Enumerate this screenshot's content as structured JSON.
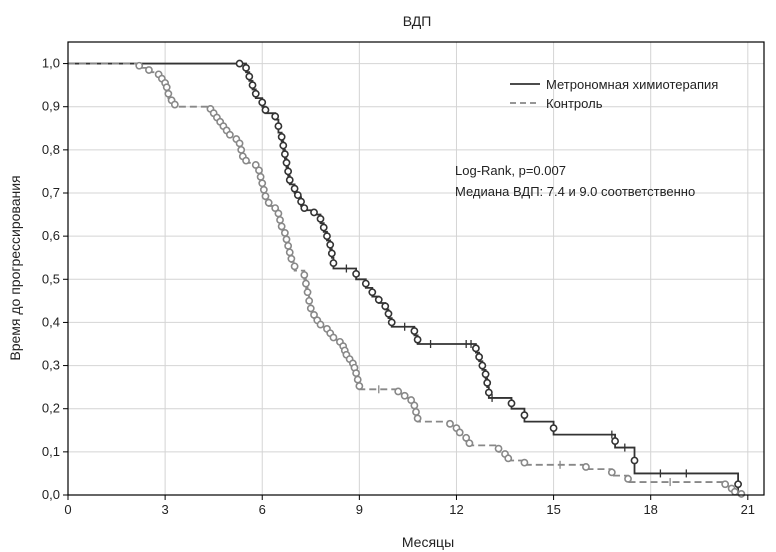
{
  "chart_data": {
    "type": "line",
    "title": "ВДП",
    "xlabel": "Месяцы",
    "ylabel": "Время до прогрессирования",
    "xlim": [
      0,
      21.5
    ],
    "ylim": [
      0,
      1.05
    ],
    "xticks": [
      "0",
      "3",
      "6",
      "9",
      "12",
      "15",
      "18",
      "21"
    ],
    "yticks": [
      "0,0",
      "0,1",
      "0,2",
      "0,3",
      "0,4",
      "0,5",
      "0,6",
      "0,7",
      "0,8",
      "0,9",
      "1,0"
    ],
    "grid": true,
    "legend_position": "top-right",
    "annotations": [
      "Log-Rank, p=0.007",
      "Медиана ВДП: 7.4 и 9.0 соответственно"
    ],
    "series": [
      {
        "name": "Метрономная химиотерапия",
        "color": "#333333",
        "line_style": "solid",
        "steps": [
          [
            0,
            1.0
          ],
          [
            5.3,
            1.0
          ],
          [
            5.5,
            0.98
          ],
          [
            5.6,
            0.96
          ],
          [
            5.7,
            0.94
          ],
          [
            5.8,
            0.92
          ],
          [
            6.0,
            0.9
          ],
          [
            6.1,
            0.885
          ],
          [
            6.4,
            0.87
          ],
          [
            6.5,
            0.84
          ],
          [
            6.6,
            0.82
          ],
          [
            6.65,
            0.8
          ],
          [
            6.7,
            0.78
          ],
          [
            6.75,
            0.76
          ],
          [
            6.8,
            0.74
          ],
          [
            6.85,
            0.72
          ],
          [
            7.0,
            0.7
          ],
          [
            7.1,
            0.69
          ],
          [
            7.2,
            0.67
          ],
          [
            7.3,
            0.66
          ],
          [
            7.6,
            0.65
          ],
          [
            7.8,
            0.63
          ],
          [
            7.9,
            0.61
          ],
          [
            8.0,
            0.59
          ],
          [
            8.1,
            0.57
          ],
          [
            8.15,
            0.55
          ],
          [
            8.2,
            0.525
          ],
          [
            8.9,
            0.5
          ],
          [
            9.2,
            0.48
          ],
          [
            9.4,
            0.46
          ],
          [
            9.6,
            0.445
          ],
          [
            9.8,
            0.43
          ],
          [
            9.9,
            0.41
          ],
          [
            10.0,
            0.39
          ],
          [
            10.7,
            0.37
          ],
          [
            10.8,
            0.35
          ],
          [
            12.6,
            0.33
          ],
          [
            12.7,
            0.31
          ],
          [
            12.8,
            0.29
          ],
          [
            12.9,
            0.27
          ],
          [
            12.95,
            0.25
          ],
          [
            13.0,
            0.225
          ],
          [
            13.7,
            0.2
          ],
          [
            14.1,
            0.17
          ],
          [
            15.0,
            0.14
          ],
          [
            16.9,
            0.11
          ],
          [
            17.5,
            0.05
          ],
          [
            20.7,
            0.0
          ]
        ],
        "events": [
          5.3,
          5.5,
          5.6,
          5.7,
          5.8,
          6.0,
          6.1,
          6.4,
          6.5,
          6.6,
          6.65,
          6.7,
          6.75,
          6.8,
          6.85,
          7.0,
          7.1,
          7.2,
          7.3,
          7.6,
          7.8,
          7.9,
          8.0,
          8.1,
          8.15,
          8.2,
          8.9,
          9.2,
          9.4,
          9.6,
          9.8,
          9.9,
          10.0,
          10.7,
          10.8,
          12.6,
          12.7,
          12.8,
          12.9,
          12.95,
          13.0,
          13.7,
          14.1,
          15.0,
          16.9,
          17.5,
          20.7
        ],
        "censored": [
          8.6,
          10.4,
          11.2,
          12.3,
          12.45,
          13.1,
          16.8,
          17.2,
          18.3,
          19.1
        ]
      },
      {
        "name": "Контроль",
        "color": "#888888",
        "line_style": "dashed",
        "steps": [
          [
            0,
            1.0
          ],
          [
            2.2,
            0.99
          ],
          [
            2.5,
            0.98
          ],
          [
            2.8,
            0.97
          ],
          [
            2.9,
            0.96
          ],
          [
            3.0,
            0.95
          ],
          [
            3.05,
            0.94
          ],
          [
            3.1,
            0.92
          ],
          [
            3.2,
            0.91
          ],
          [
            3.3,
            0.9
          ],
          [
            4.4,
            0.89
          ],
          [
            4.5,
            0.88
          ],
          [
            4.6,
            0.87
          ],
          [
            4.7,
            0.86
          ],
          [
            4.8,
            0.85
          ],
          [
            4.9,
            0.84
          ],
          [
            5.0,
            0.83
          ],
          [
            5.2,
            0.82
          ],
          [
            5.3,
            0.81
          ],
          [
            5.35,
            0.79
          ],
          [
            5.4,
            0.78
          ],
          [
            5.5,
            0.77
          ],
          [
            5.8,
            0.76
          ],
          [
            5.9,
            0.745
          ],
          [
            5.95,
            0.73
          ],
          [
            6.0,
            0.715
          ],
          [
            6.05,
            0.7
          ],
          [
            6.1,
            0.685
          ],
          [
            6.2,
            0.67
          ],
          [
            6.4,
            0.66
          ],
          [
            6.5,
            0.645
          ],
          [
            6.55,
            0.63
          ],
          [
            6.6,
            0.615
          ],
          [
            6.7,
            0.6
          ],
          [
            6.75,
            0.585
          ],
          [
            6.8,
            0.57
          ],
          [
            6.85,
            0.555
          ],
          [
            6.9,
            0.54
          ],
          [
            7.0,
            0.52
          ],
          [
            7.3,
            0.5
          ],
          [
            7.35,
            0.48
          ],
          [
            7.4,
            0.46
          ],
          [
            7.45,
            0.44
          ],
          [
            7.5,
            0.425
          ],
          [
            7.6,
            0.41
          ],
          [
            7.7,
            0.4
          ],
          [
            7.8,
            0.39
          ],
          [
            8.0,
            0.38
          ],
          [
            8.1,
            0.37
          ],
          [
            8.2,
            0.36
          ],
          [
            8.4,
            0.35
          ],
          [
            8.5,
            0.34
          ],
          [
            8.55,
            0.33
          ],
          [
            8.6,
            0.32
          ],
          [
            8.7,
            0.31
          ],
          [
            8.8,
            0.3
          ],
          [
            8.85,
            0.29
          ],
          [
            8.9,
            0.275
          ],
          [
            8.95,
            0.26
          ],
          [
            9.0,
            0.245
          ],
          [
            10.2,
            0.235
          ],
          [
            10.4,
            0.225
          ],
          [
            10.6,
            0.215
          ],
          [
            10.7,
            0.2
          ],
          [
            10.75,
            0.185
          ],
          [
            10.8,
            0.17
          ],
          [
            11.8,
            0.16
          ],
          [
            12.0,
            0.15
          ],
          [
            12.1,
            0.14
          ],
          [
            12.3,
            0.125
          ],
          [
            12.4,
            0.115
          ],
          [
            13.3,
            0.1
          ],
          [
            13.5,
            0.09
          ],
          [
            13.6,
            0.08
          ],
          [
            14.1,
            0.07
          ],
          [
            16.0,
            0.06
          ],
          [
            16.8,
            0.045
          ],
          [
            17.3,
            0.03
          ],
          [
            20.3,
            0.02
          ],
          [
            20.5,
            0.01
          ],
          [
            20.6,
            0.005
          ],
          [
            20.8,
            0.0
          ]
        ],
        "events": [
          2.2,
          2.5,
          2.8,
          2.9,
          3.0,
          3.05,
          3.1,
          3.2,
          3.3,
          4.4,
          4.5,
          4.6,
          4.7,
          4.8,
          4.9,
          5.0,
          5.2,
          5.3,
          5.35,
          5.4,
          5.5,
          5.8,
          5.9,
          5.95,
          6.0,
          6.05,
          6.1,
          6.2,
          6.4,
          6.5,
          6.55,
          6.6,
          6.7,
          6.75,
          6.8,
          6.85,
          6.9,
          7.0,
          7.3,
          7.35,
          7.4,
          7.45,
          7.5,
          7.6,
          7.7,
          7.8,
          8.0,
          8.1,
          8.2,
          8.4,
          8.5,
          8.55,
          8.6,
          8.7,
          8.8,
          8.85,
          8.9,
          8.95,
          9.0,
          10.2,
          10.4,
          10.6,
          10.7,
          10.75,
          10.8,
          11.8,
          12.0,
          12.1,
          12.3,
          12.4,
          13.3,
          13.5,
          13.6,
          14.1,
          16.0,
          16.8,
          17.3,
          20.3,
          20.5,
          20.6,
          20.8
        ],
        "censored": [
          9.6,
          15.2,
          18.6
        ]
      }
    ]
  }
}
